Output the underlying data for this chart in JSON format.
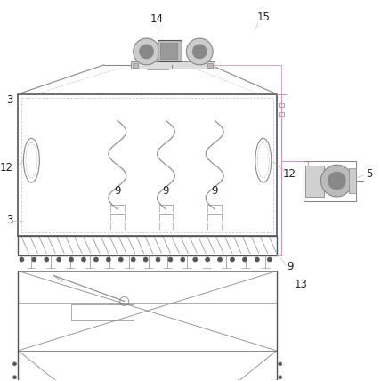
{
  "bg_color": "#ffffff",
  "lc": "#888888",
  "lc_dark": "#555555",
  "lc_light": "#aaaaaa",
  "lc_pink": "#cc99bb",
  "lc_green": "#99cc99",
  "fig_size": [
    4.28,
    4.28
  ],
  "dpi": 100
}
